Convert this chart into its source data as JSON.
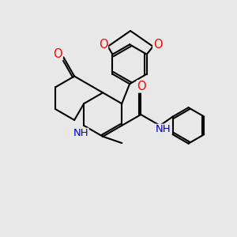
{
  "bg_color": "#e8e8e8",
  "bond_color": "#000000",
  "bond_width": 1.5,
  "atom_colors": {
    "O": "#ff0000",
    "N": "#0000cc",
    "C": "#000000"
  },
  "font_size": 9.5,
  "figsize": [
    3.0,
    3.0
  ],
  "dpi": 100,
  "scale": 1.0
}
